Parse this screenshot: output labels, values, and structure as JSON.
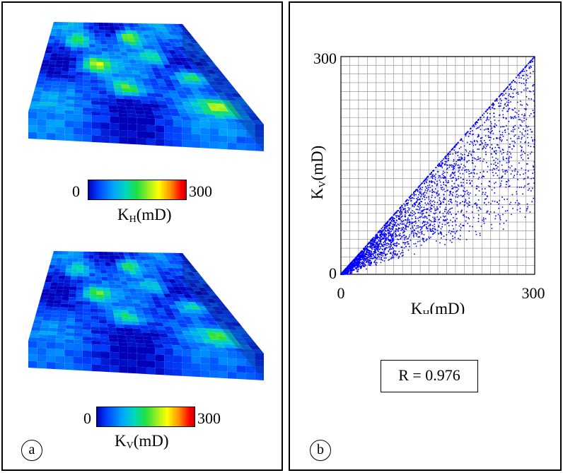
{
  "panel_a": {
    "label": "a",
    "top_colorbar": {
      "min_label": "0",
      "max_label": "300",
      "axis_base": "K",
      "axis_sub": "H",
      "axis_unit": "(mD)"
    },
    "bottom_colorbar": {
      "min_label": "0",
      "max_label": "300",
      "axis_base": "K",
      "axis_sub": "V",
      "axis_unit": "(mD)"
    }
  },
  "panel_b": {
    "label": "b",
    "r_text": "R = 0.976"
  },
  "chart_data": {
    "type": "scatter",
    "title": "",
    "xlabel_base": "K",
    "xlabel_sub": "H",
    "xlabel_unit": "(mD)",
    "ylabel_base": "K",
    "ylabel_sub": "V",
    "ylabel_unit": "(mD)",
    "xlim": [
      0,
      300
    ],
    "ylim": [
      0,
      300
    ],
    "x_tick_labels": [
      "0",
      "300"
    ],
    "y_tick_labels": [
      "0",
      "300"
    ],
    "grid": true,
    "point_color": "#0000ff",
    "series": [
      {
        "values_note": "",
        "x": [
          5,
          12,
          18,
          25,
          30,
          38,
          45,
          52,
          60,
          70,
          80,
          95,
          110,
          130,
          150,
          170,
          190,
          210,
          230,
          250,
          270,
          290,
          20,
          35,
          50,
          65,
          80,
          100,
          120,
          140,
          160,
          180,
          200,
          220,
          240,
          260,
          280,
          300
        ],
        "y": [
          4,
          10,
          15,
          20,
          22,
          28,
          32,
          38,
          42,
          48,
          55,
          62,
          70,
          80,
          90,
          100,
          108,
          118,
          128,
          135,
          145,
          160,
          18,
          30,
          40,
          50,
          62,
          75,
          85,
          95,
          105,
          115,
          125,
          135,
          150,
          160,
          175,
          185
        ]
      }
    ],
    "correlation": 0.976
  },
  "colors": {
    "low": "#0000b8",
    "mid": "#20e040",
    "high": "#ff0000",
    "border": "#000000",
    "scatter": "#0000ff"
  }
}
